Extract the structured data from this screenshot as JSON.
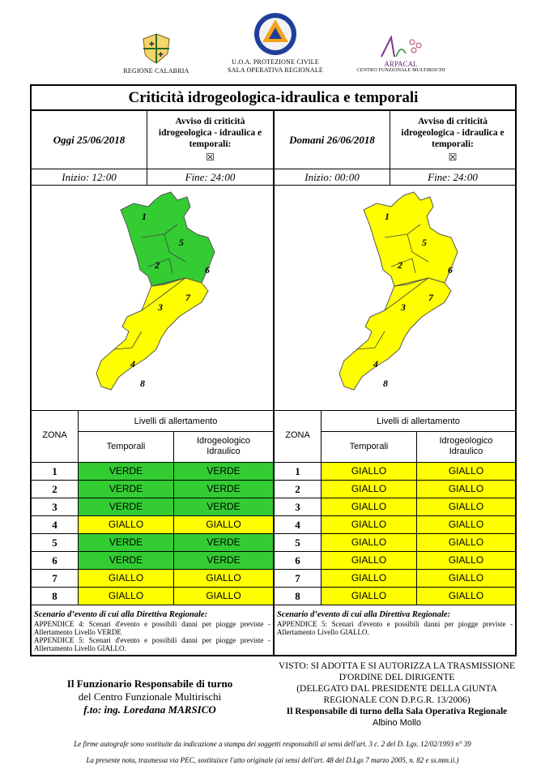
{
  "header": {
    "left_logo_caption": "REGIONE CALABRIA",
    "center_logo_line1": "U.O.A. PROTEZIONE CIVILE",
    "center_logo_line2": "SALA OPERATIVA REGIONALE",
    "right_logo_name": "ARPACAL",
    "right_logo_sub": "CENTRO FUNZIONALE MULTIRISCHI"
  },
  "title": "Criticità idrogeologica-idraulica e temporali",
  "days": [
    {
      "date_label": "Oggi 25/06/2018",
      "avviso_line1": "Avviso di criticità",
      "avviso_line2": "idrogeologica - idraulica e",
      "avviso_line3": "temporali:",
      "avviso_mark": "☒",
      "inizio": "Inizio: 12:00",
      "fine": "Fine: 24:00",
      "map_colors": {
        "north": "#33cc33",
        "south": "#ffff00"
      },
      "zones": [
        {
          "n": "1",
          "temporali": "VERDE",
          "idro": "VERDE"
        },
        {
          "n": "2",
          "temporali": "VERDE",
          "idro": "VERDE"
        },
        {
          "n": "3",
          "temporali": "VERDE",
          "idro": "VERDE"
        },
        {
          "n": "4",
          "temporali": "GIALLO",
          "idro": "GIALLO"
        },
        {
          "n": "5",
          "temporali": "VERDE",
          "idro": "VERDE"
        },
        {
          "n": "6",
          "temporali": "VERDE",
          "idro": "VERDE"
        },
        {
          "n": "7",
          "temporali": "GIALLO",
          "idro": "GIALLO"
        },
        {
          "n": "8",
          "temporali": "GIALLO",
          "idro": "GIALLO"
        }
      ],
      "scenario_title": "Scenario d’evento di cui alla Direttiva Regionale:",
      "scenario_lines": [
        "APPENDICE 4: Scenari d'evento e possibili danni per piogge previste - Allertamento Livello VERDE",
        "APPENDICE 5: Scenari d'evento e possibili danni per piogge previste - Allertamento Livello GIALLO."
      ]
    },
    {
      "date_label": "Domani 26/06/2018",
      "avviso_line1": "Avviso di criticità",
      "avviso_line2": "idrogeologica - idraulica e",
      "avviso_line3": "temporali:",
      "avviso_mark": "☒",
      "inizio": "Inizio: 00:00",
      "fine": "Fine: 24:00",
      "map_colors": {
        "north": "#ffff00",
        "south": "#ffff00"
      },
      "zones": [
        {
          "n": "1",
          "temporali": "GIALLO",
          "idro": "GIALLO"
        },
        {
          "n": "2",
          "temporali": "GIALLO",
          "idro": "GIALLO"
        },
        {
          "n": "3",
          "temporali": "GIALLO",
          "idro": "GIALLO"
        },
        {
          "n": "4",
          "temporali": "GIALLO",
          "idro": "GIALLO"
        },
        {
          "n": "5",
          "temporali": "GIALLO",
          "idro": "GIALLO"
        },
        {
          "n": "6",
          "temporali": "GIALLO",
          "idro": "GIALLO"
        },
        {
          "n": "7",
          "temporali": "GIALLO",
          "idro": "GIALLO"
        },
        {
          "n": "8",
          "temporali": "GIALLO",
          "idro": "GIALLO"
        }
      ],
      "scenario_title": "Scenario d’evento di cui alla Direttiva Regionale:",
      "scenario_lines": [
        "APPENDICE 5: Scenari d'evento e possibili danni per piogge previste - Allertamento Livello GIALLO."
      ]
    }
  ],
  "table_headers": {
    "zona": "ZONA",
    "livelli": "Livelli di allertamento",
    "temporali": "Temporali",
    "idro_line1": "Idrogeologico",
    "idro_line2": "Idraulico"
  },
  "footer": {
    "left_line1": "Il Funzionario Responsabile di turno",
    "left_line2": "del Centro Funzionale Multirischi",
    "left_line3": "f.to: ing. Loredana MARSICO",
    "right_line1": "VISTO: SI ADOTTA E SI AUTORIZZA LA TRASMISSIONE",
    "right_line2": "D'ORDINE DEL DIRIGENTE",
    "right_line3": "(DELEGATO DAL PRESIDENTE DELLA GIUNTA",
    "right_line4": "REGIONALE CON D.P.G.R. 13/2006)",
    "right_line5": "Il Responsabile di turno della Sala Operativa Regionale",
    "right_line6": "Albino Mollo",
    "note1": "Le firme autografe sono sostituite da indicazione a stampa dei soggetti responsabili ai sensi dell'art. 3 c. 2 del D. Lgs. 12/02/1993 n° 39",
    "note2": "La presente nota, trasmessa via PEC, sostituisce l'atto originale (ai sensi dell'art. 48 del D.Lgs 7 marzo 2005, n. 82 e ss.mm.ii.)"
  }
}
